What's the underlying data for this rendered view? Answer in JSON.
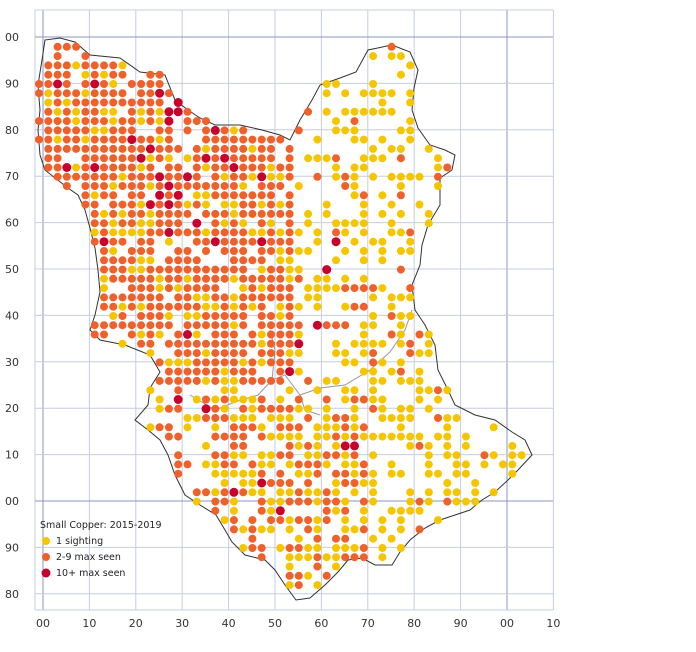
{
  "map": {
    "axis": {
      "x_labels": [
        "00",
        "10",
        "20",
        "30",
        "40",
        "50",
        "60",
        "70",
        "80",
        "90",
        "00",
        "10"
      ],
      "y_labels": [
        "00",
        "90",
        "80",
        "70",
        "60",
        "50",
        "40",
        "30",
        "20",
        "10",
        "00",
        "90",
        "80"
      ]
    },
    "colors": {
      "one_sighting": "#f5c500",
      "two_to_nine": "#f0602a",
      "ten_plus": "#c8002d",
      "gridline": "#c6cce0",
      "gridline_major": "#8a95c4",
      "boundary": "#333333",
      "sub_boundary": "#999999"
    },
    "legend": {
      "title": "Small Copper:  2015-2019",
      "items": [
        {
          "label": "1 sighting",
          "color_key": "one_sighting"
        },
        {
          "label": "2-9 max seen",
          "color_key": "two_to_nine"
        },
        {
          "label": "10+ max seen",
          "color_key": "ten_plus"
        }
      ]
    }
  }
}
